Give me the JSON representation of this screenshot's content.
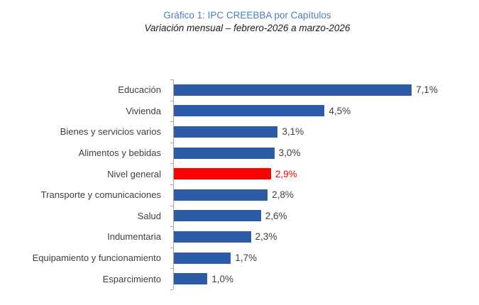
{
  "chart_data": {
    "type": "bar",
    "orientation": "horizontal",
    "title": "Gráfico 1: IPC CREEBBA por Capítulos",
    "subtitle": "Variación mensual – febrero-2026 a marzo-2026",
    "categories": [
      "Educación",
      "Vivienda",
      "Bienes y servicios varios",
      "Alimentos y bebidas",
      "Nivel general",
      "Transporte y comunicaciones",
      "Salud",
      "Indumentaria",
      "Equipamiento y funcionamiento",
      "Esparcimiento"
    ],
    "values": [
      7.1,
      4.5,
      3.1,
      3.0,
      2.9,
      2.8,
      2.6,
      2.3,
      1.7,
      1.0
    ],
    "value_labels": [
      "7,1%",
      "4,5%",
      "3,1%",
      "3,0%",
      "2,9%",
      "2,8%",
      "2,6%",
      "2,3%",
      "1,7%",
      "1,0%"
    ],
    "highlight_category": "Nivel general",
    "highlight_index": 4,
    "xlim": [
      0,
      7.5
    ],
    "legend": "none",
    "grid": "off",
    "colors": {
      "bar": "#2d5ba7",
      "highlight_bar": "#ff0000",
      "title": "#4a7ebe",
      "subtitle": "#1a1a1a",
      "labels": "#404040",
      "axis": "#a6a6a6"
    }
  }
}
